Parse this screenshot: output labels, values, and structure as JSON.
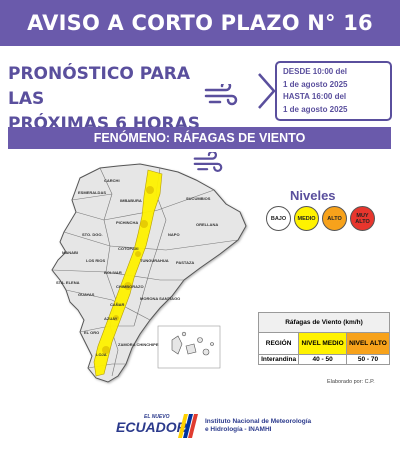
{
  "header": {
    "title": "AVISO A CORTO PLAZO N° 16"
  },
  "forecast": {
    "title_line1": "PRONÓSTICO PARA LAS",
    "title_line2": "PRÓXIMAS 6 HORAS"
  },
  "validity": {
    "line1": "DESDE 10:00 del",
    "line2": "1 de agosto 2025",
    "line3": "HASTA 16:00 del",
    "line4": "1 de agosto 2025"
  },
  "phenomenon": {
    "label": "FENÓMENO:  RÁFAGAS DE VIENTO"
  },
  "levels": {
    "title": "Niveles",
    "items": [
      {
        "label": "BAJO",
        "color": "#ffffff"
      },
      {
        "label": "MEDIO",
        "color": "#fff200"
      },
      {
        "label": "ALTO",
        "color": "#f7a21b"
      },
      {
        "label": "MUY ALTO",
        "color": "#e8362d"
      }
    ]
  },
  "table": {
    "title": "Ráfagas de Viento (km/h)",
    "col_region": "REGIÓN",
    "col_medio": "NIVEL MEDIO",
    "col_alto": "NIVEL ALTO",
    "rows": [
      {
        "region": "Interandina",
        "medio": "40 - 50",
        "alto": "50 - 70"
      }
    ]
  },
  "credit": "Elaborado por: C.P.",
  "footer": {
    "logo_small": "EL NUEVO",
    "logo_big": "ECUADOR",
    "inst_line1": "Instituto Nacional de Meteorología",
    "inst_line2": "e Hidrología - INAMHI"
  },
  "map_labels": {
    "carchi": "CARCHI",
    "esmeraldas": "ESMERALDAS",
    "imbabura": "IMBABURA",
    "sucumbios": "SUCUMBIOS",
    "pichincha": "PICHINCHA",
    "napo": "NAPO",
    "orellana": "ORELLANA",
    "santo_domingo": "STO. DGO.",
    "manabi": "MANABI",
    "cotopaxi": "COTOPAXI",
    "tungurahua": "TUNGURAHUA",
    "los_rios": "LOS RIOS",
    "bolivar": "BOLIVAR",
    "pastaza": "PASTAZA",
    "santa_elena": "STA. ELENA",
    "guayas": "GUAYAS",
    "chimborazo": "CHIMBORAZO",
    "canar": "CAÑAR",
    "morona": "MORONA SANTIAGO",
    "azuay": "AZUAY",
    "el_oro": "EL ORO",
    "loja": "LOJA",
    "zamora": "ZAMORA CHINCHIPE"
  },
  "colors": {
    "brand": "#6a5aab",
    "medio": "#fff200",
    "alto": "#f7a21b",
    "muy_alto": "#e8362d"
  }
}
